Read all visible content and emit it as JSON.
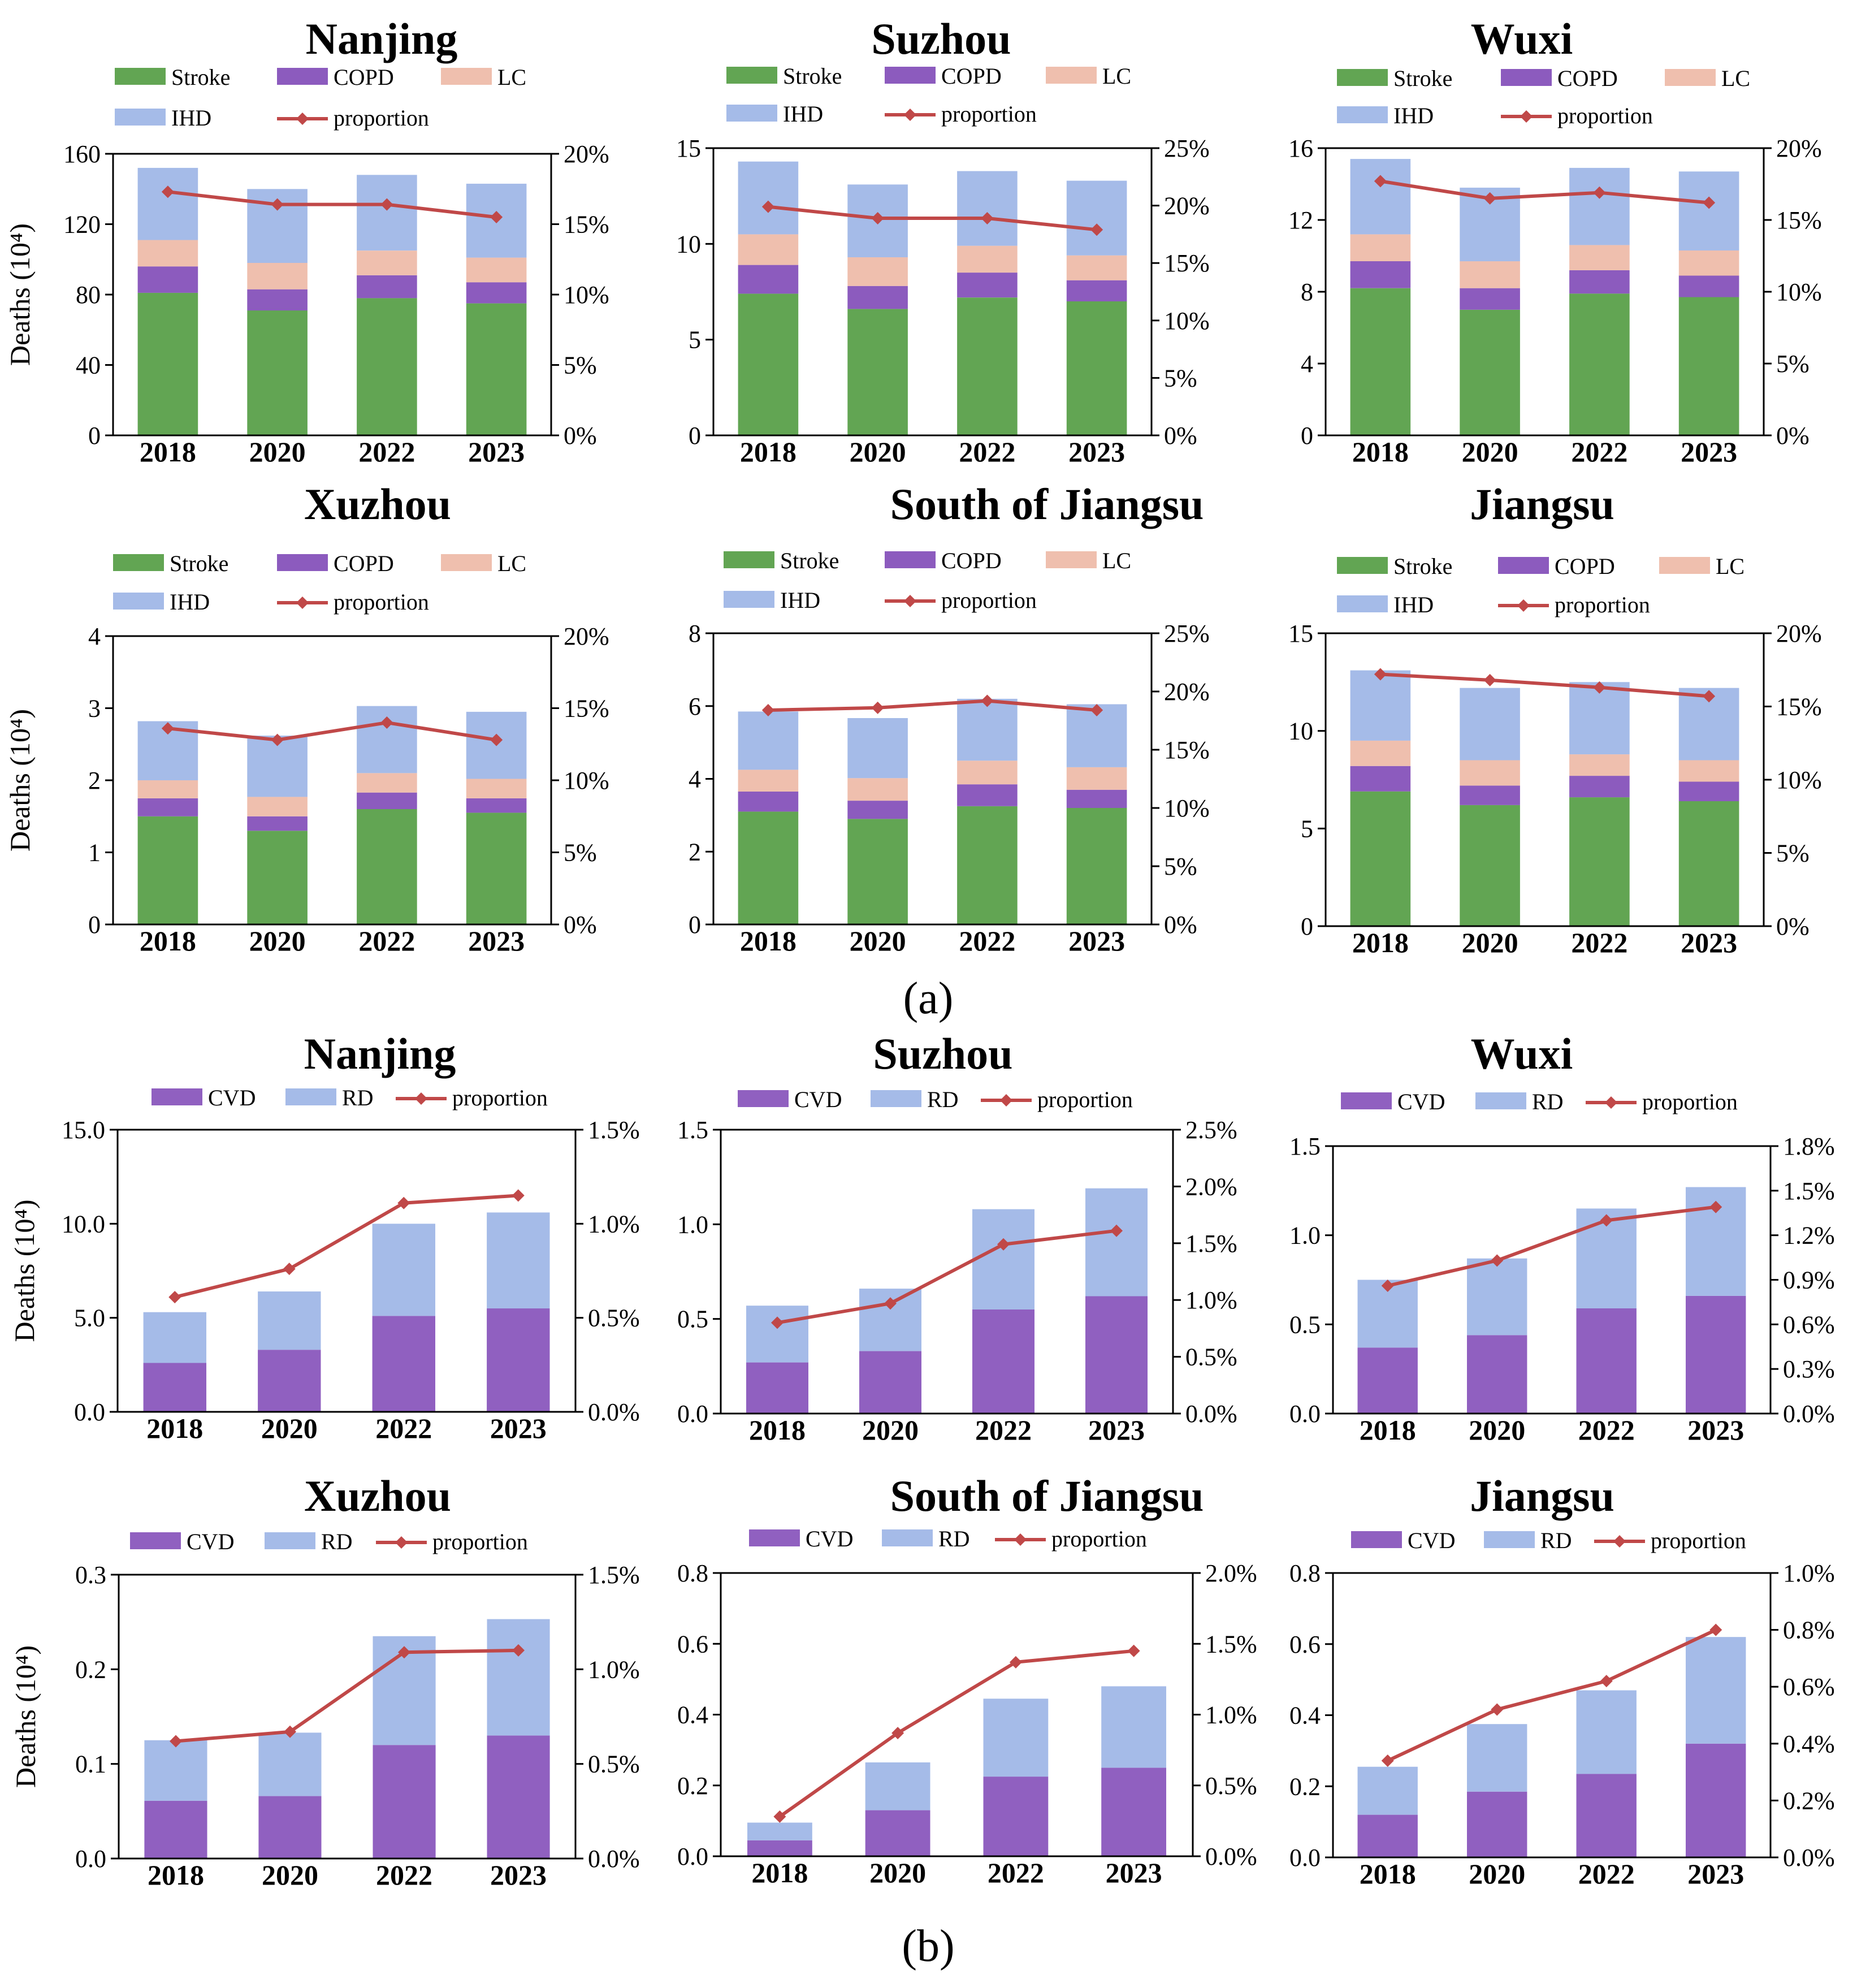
{
  "labels": {
    "a": "(a)",
    "b": "(b)"
  },
  "colors": {
    "Stroke": "#62a553",
    "COPD": "#8c5bbe",
    "LC": "#efbfae",
    "IHD": "#a5bbe8",
    "CVD": "#9060c0",
    "RD": "#a5bbe8",
    "proportion": "#c04848"
  },
  "chart_data": [
    {
      "id": "a1",
      "type": "bar",
      "stacked": true,
      "title": "Nanjing",
      "ylabel": "Deaths (10⁴)",
      "categories": [
        "2018",
        "2020",
        "2022",
        "2023"
      ],
      "ylim": [
        0,
        160
      ],
      "yticks": [
        "0",
        "40",
        "80",
        "120",
        "160"
      ],
      "y2lim": [
        0,
        20
      ],
      "y2ticks": [
        "0%",
        "5%",
        "10%",
        "15%",
        "20%"
      ],
      "legend": [
        "Stroke",
        "COPD",
        "LC",
        "IHD",
        "proportion"
      ],
      "series": [
        {
          "name": "Stroke",
          "values": [
            81,
            71,
            78,
            75
          ]
        },
        {
          "name": "COPD",
          "values": [
            15,
            12,
            13,
            12
          ]
        },
        {
          "name": "LC",
          "values": [
            15,
            15,
            14,
            14
          ]
        },
        {
          "name": "IHD",
          "values": [
            41,
            42,
            43,
            42
          ]
        }
      ],
      "line": {
        "name": "proportion",
        "values": [
          17.3,
          16.4,
          16.4,
          15.5
        ]
      }
    },
    {
      "id": "a2",
      "type": "bar",
      "stacked": true,
      "title": "Suzhou",
      "ylabel": "",
      "categories": [
        "2018",
        "2020",
        "2022",
        "2023"
      ],
      "ylim": [
        0,
        15
      ],
      "yticks": [
        "0",
        "5",
        "10",
        "15"
      ],
      "y2lim": [
        0,
        25
      ],
      "y2ticks": [
        "0%",
        "5%",
        "10%",
        "15%",
        "20%",
        "25%"
      ],
      "legend": [
        "Stroke",
        "COPD",
        "LC",
        "IHD",
        "proportion"
      ],
      "series": [
        {
          "name": "Stroke",
          "values": [
            7.4,
            6.6,
            7.2,
            7.0
          ]
        },
        {
          "name": "COPD",
          "values": [
            1.5,
            1.2,
            1.3,
            1.1
          ]
        },
        {
          "name": "LC",
          "values": [
            1.6,
            1.5,
            1.4,
            1.3
          ]
        },
        {
          "name": "IHD",
          "values": [
            3.8,
            3.8,
            3.9,
            3.9
          ]
        }
      ],
      "line": {
        "name": "proportion",
        "values": [
          19.9,
          18.9,
          18.9,
          17.9
        ]
      }
    },
    {
      "id": "a3",
      "type": "bar",
      "stacked": true,
      "title": "Wuxi",
      "ylabel": "",
      "categories": [
        "2018",
        "2020",
        "2022",
        "2023"
      ],
      "ylim": [
        0,
        16
      ],
      "yticks": [
        "0",
        "4",
        "8",
        "12",
        "16"
      ],
      "y2lim": [
        0,
        20
      ],
      "y2ticks": [
        "0%",
        "5%",
        "10%",
        "15%",
        "20%"
      ],
      "legend": [
        "Stroke",
        "COPD",
        "LC",
        "IHD",
        "proportion"
      ],
      "series": [
        {
          "name": "Stroke",
          "values": [
            8.2,
            7.0,
            7.9,
            7.7
          ]
        },
        {
          "name": "COPD",
          "values": [
            1.5,
            1.2,
            1.3,
            1.2
          ]
        },
        {
          "name": "LC",
          "values": [
            1.5,
            1.5,
            1.4,
            1.4
          ]
        },
        {
          "name": "IHD",
          "values": [
            4.2,
            4.1,
            4.3,
            4.4
          ]
        }
      ],
      "line": {
        "name": "proportion",
        "values": [
          17.7,
          16.5,
          16.9,
          16.2
        ]
      }
    },
    {
      "id": "a4",
      "type": "bar",
      "stacked": true,
      "title": "Xuzhou",
      "ylabel": "Deaths (10⁴)",
      "categories": [
        "2018",
        "2020",
        "2022",
        "2023"
      ],
      "ylim": [
        0,
        4
      ],
      "yticks": [
        "0",
        "1",
        "2",
        "3",
        "4"
      ],
      "y2lim": [
        0,
        20
      ],
      "y2ticks": [
        "0%",
        "5%",
        "10%",
        "15%",
        "20%"
      ],
      "legend": [
        "Stroke",
        "COPD",
        "LC",
        "IHD",
        "proportion"
      ],
      "series": [
        {
          "name": "Stroke",
          "values": [
            1.5,
            1.3,
            1.6,
            1.55
          ]
        },
        {
          "name": "COPD",
          "values": [
            0.25,
            0.2,
            0.23,
            0.2
          ]
        },
        {
          "name": "LC",
          "values": [
            0.25,
            0.27,
            0.27,
            0.27
          ]
        },
        {
          "name": "IHD",
          "values": [
            0.82,
            0.85,
            0.93,
            0.93
          ]
        }
      ],
      "line": {
        "name": "proportion",
        "values": [
          13.6,
          12.8,
          14.0,
          12.8
        ]
      }
    },
    {
      "id": "a5",
      "type": "bar",
      "stacked": true,
      "title": "South of Jiangsu",
      "ylabel": "",
      "categories": [
        "2018",
        "2020",
        "2022",
        "2023"
      ],
      "ylim": [
        0,
        8
      ],
      "yticks": [
        "0",
        "2",
        "4",
        "6",
        "8"
      ],
      "y2lim": [
        0,
        25
      ],
      "y2ticks": [
        "0%",
        "5%",
        "10%",
        "15%",
        "20%",
        "25%"
      ],
      "legend": [
        "Stroke",
        "COPD",
        "LC",
        "IHD",
        "proportion"
      ],
      "series": [
        {
          "name": "Stroke",
          "values": [
            3.1,
            2.9,
            3.25,
            3.2
          ]
        },
        {
          "name": "COPD",
          "values": [
            0.55,
            0.5,
            0.6,
            0.5
          ]
        },
        {
          "name": "LC",
          "values": [
            0.6,
            0.62,
            0.65,
            0.62
          ]
        },
        {
          "name": "IHD",
          "values": [
            1.6,
            1.65,
            1.7,
            1.73
          ]
        }
      ],
      "line": {
        "name": "proportion",
        "values": [
          18.4,
          18.6,
          19.2,
          18.4
        ]
      }
    },
    {
      "id": "a6",
      "type": "bar",
      "stacked": true,
      "title": "Jiangsu",
      "ylabel": "",
      "categories": [
        "2018",
        "2020",
        "2022",
        "2023"
      ],
      "ylim": [
        0,
        15
      ],
      "yticks": [
        "0",
        "5",
        "10",
        "15"
      ],
      "y2lim": [
        0,
        20
      ],
      "y2ticks": [
        "0%",
        "5%",
        "10%",
        "15%",
        "20%"
      ],
      "legend": [
        "Stroke",
        "COPD",
        "LC",
        "IHD",
        "proportion"
      ],
      "series": [
        {
          "name": "Stroke",
          "values": [
            6.9,
            6.2,
            6.6,
            6.4
          ]
        },
        {
          "name": "COPD",
          "values": [
            1.3,
            1.0,
            1.1,
            1.0
          ]
        },
        {
          "name": "LC",
          "values": [
            1.3,
            1.3,
            1.1,
            1.1
          ]
        },
        {
          "name": "IHD",
          "values": [
            3.6,
            3.7,
            3.7,
            3.7
          ]
        }
      ],
      "line": {
        "name": "proportion",
        "values": [
          17.2,
          16.8,
          16.3,
          15.7
        ]
      }
    },
    {
      "id": "b1",
      "type": "bar",
      "stacked": true,
      "title": "Nanjing",
      "ylabel": "Deaths (10⁴)",
      "categories": [
        "2018",
        "2020",
        "2022",
        "2023"
      ],
      "ylim": [
        0,
        15
      ],
      "yticks": [
        "0.0",
        "5.0",
        "10.0",
        "15.0"
      ],
      "y2lim": [
        0,
        1.5
      ],
      "y2ticks": [
        "0.0%",
        "0.5%",
        "1.0%",
        "1.5%"
      ],
      "legend": [
        "CVD",
        "RD",
        "proportion"
      ],
      "series": [
        {
          "name": "CVD",
          "values": [
            2.6,
            3.3,
            5.1,
            5.5
          ]
        },
        {
          "name": "RD",
          "values": [
            2.7,
            3.1,
            4.9,
            5.1
          ]
        }
      ],
      "line": {
        "name": "proportion",
        "values": [
          0.61,
          0.76,
          1.11,
          1.15
        ]
      }
    },
    {
      "id": "b2",
      "type": "bar",
      "stacked": true,
      "title": "Suzhou",
      "ylabel": "",
      "categories": [
        "2018",
        "2020",
        "2022",
        "2023"
      ],
      "ylim": [
        0,
        1.5
      ],
      "yticks": [
        "0.0",
        "0.5",
        "1.0",
        "1.5"
      ],
      "y2lim": [
        0,
        2.5
      ],
      "y2ticks": [
        "0.0%",
        "0.5%",
        "1.0%",
        "1.5%",
        "2.0%",
        "2.5%"
      ],
      "legend": [
        "CVD",
        "RD",
        "proportion"
      ],
      "series": [
        {
          "name": "CVD",
          "values": [
            0.27,
            0.33,
            0.55,
            0.62
          ]
        },
        {
          "name": "RD",
          "values": [
            0.3,
            0.33,
            0.53,
            0.57
          ]
        }
      ],
      "line": {
        "name": "proportion",
        "values": [
          0.8,
          0.97,
          1.49,
          1.61
        ]
      }
    },
    {
      "id": "b3",
      "type": "bar",
      "stacked": true,
      "title": "Wuxi",
      "ylabel": "",
      "categories": [
        "2018",
        "2020",
        "2022",
        "2023"
      ],
      "ylim": [
        0,
        1.5
      ],
      "yticks": [
        "0.0",
        "0.5",
        "1.0",
        "1.5"
      ],
      "y2lim": [
        0,
        1.8
      ],
      "y2ticks": [
        "0.0%",
        "0.3%",
        "0.6%",
        "0.9%",
        "1.2%",
        "1.5%",
        "1.8%"
      ],
      "legend": [
        "CVD",
        "RD",
        "proportion"
      ],
      "series": [
        {
          "name": "CVD",
          "values": [
            0.37,
            0.44,
            0.59,
            0.66
          ]
        },
        {
          "name": "RD",
          "values": [
            0.38,
            0.43,
            0.56,
            0.61
          ]
        }
      ],
      "line": {
        "name": "proportion",
        "values": [
          0.86,
          1.03,
          1.3,
          1.39
        ]
      }
    },
    {
      "id": "b4",
      "type": "bar",
      "stacked": true,
      "title": "Xuzhou",
      "ylabel": "Deaths (10⁴)",
      "categories": [
        "2018",
        "2020",
        "2022",
        "2023"
      ],
      "ylim": [
        0,
        0.3
      ],
      "yticks": [
        "0.0",
        "0.1",
        "0.2",
        "0.3"
      ],
      "y2lim": [
        0,
        1.5
      ],
      "y2ticks": [
        "0.0%",
        "0.5%",
        "1.0%",
        "1.5%"
      ],
      "legend": [
        "CVD",
        "RD",
        "proportion"
      ],
      "series": [
        {
          "name": "CVD",
          "values": [
            0.061,
            0.066,
            0.12,
            0.13
          ]
        },
        {
          "name": "RD",
          "values": [
            0.064,
            0.067,
            0.115,
            0.123
          ]
        }
      ],
      "line": {
        "name": "proportion",
        "values": [
          0.62,
          0.67,
          1.09,
          1.1
        ]
      }
    },
    {
      "id": "b5",
      "type": "bar",
      "stacked": true,
      "title": "South of Jiangsu",
      "ylabel": "",
      "categories": [
        "2018",
        "2020",
        "2022",
        "2023"
      ],
      "ylim": [
        0,
        0.8
      ],
      "yticks": [
        "0.0",
        "0.2",
        "0.4",
        "0.6",
        "0.8"
      ],
      "y2lim": [
        0,
        2.0
      ],
      "y2ticks": [
        "0.0%",
        "0.5%",
        "1.0%",
        "1.5%",
        "2.0%"
      ],
      "legend": [
        "CVD",
        "RD",
        "proportion"
      ],
      "series": [
        {
          "name": "CVD",
          "values": [
            0.045,
            0.13,
            0.225,
            0.25
          ]
        },
        {
          "name": "RD",
          "values": [
            0.05,
            0.135,
            0.22,
            0.23
          ]
        }
      ],
      "line": {
        "name": "proportion",
        "values": [
          0.28,
          0.87,
          1.37,
          1.45
        ]
      }
    },
    {
      "id": "b6",
      "type": "bar",
      "stacked": true,
      "title": "Jiangsu",
      "ylabel": "",
      "categories": [
        "2018",
        "2020",
        "2022",
        "2023"
      ],
      "ylim": [
        0,
        0.8
      ],
      "yticks": [
        "0.0",
        "0.2",
        "0.4",
        "0.6",
        "0.8"
      ],
      "y2lim": [
        0,
        1.0
      ],
      "y2ticks": [
        "0.0%",
        "0.2%",
        "0.4%",
        "0.6%",
        "0.8%",
        "1.0%"
      ],
      "legend": [
        "CVD",
        "RD",
        "proportion"
      ],
      "series": [
        {
          "name": "CVD",
          "values": [
            0.12,
            0.185,
            0.235,
            0.32
          ]
        },
        {
          "name": "RD",
          "values": [
            0.135,
            0.19,
            0.235,
            0.3
          ]
        }
      ],
      "line": {
        "name": "proportion",
        "values": [
          0.34,
          0.52,
          0.62,
          0.8
        ]
      }
    }
  ]
}
